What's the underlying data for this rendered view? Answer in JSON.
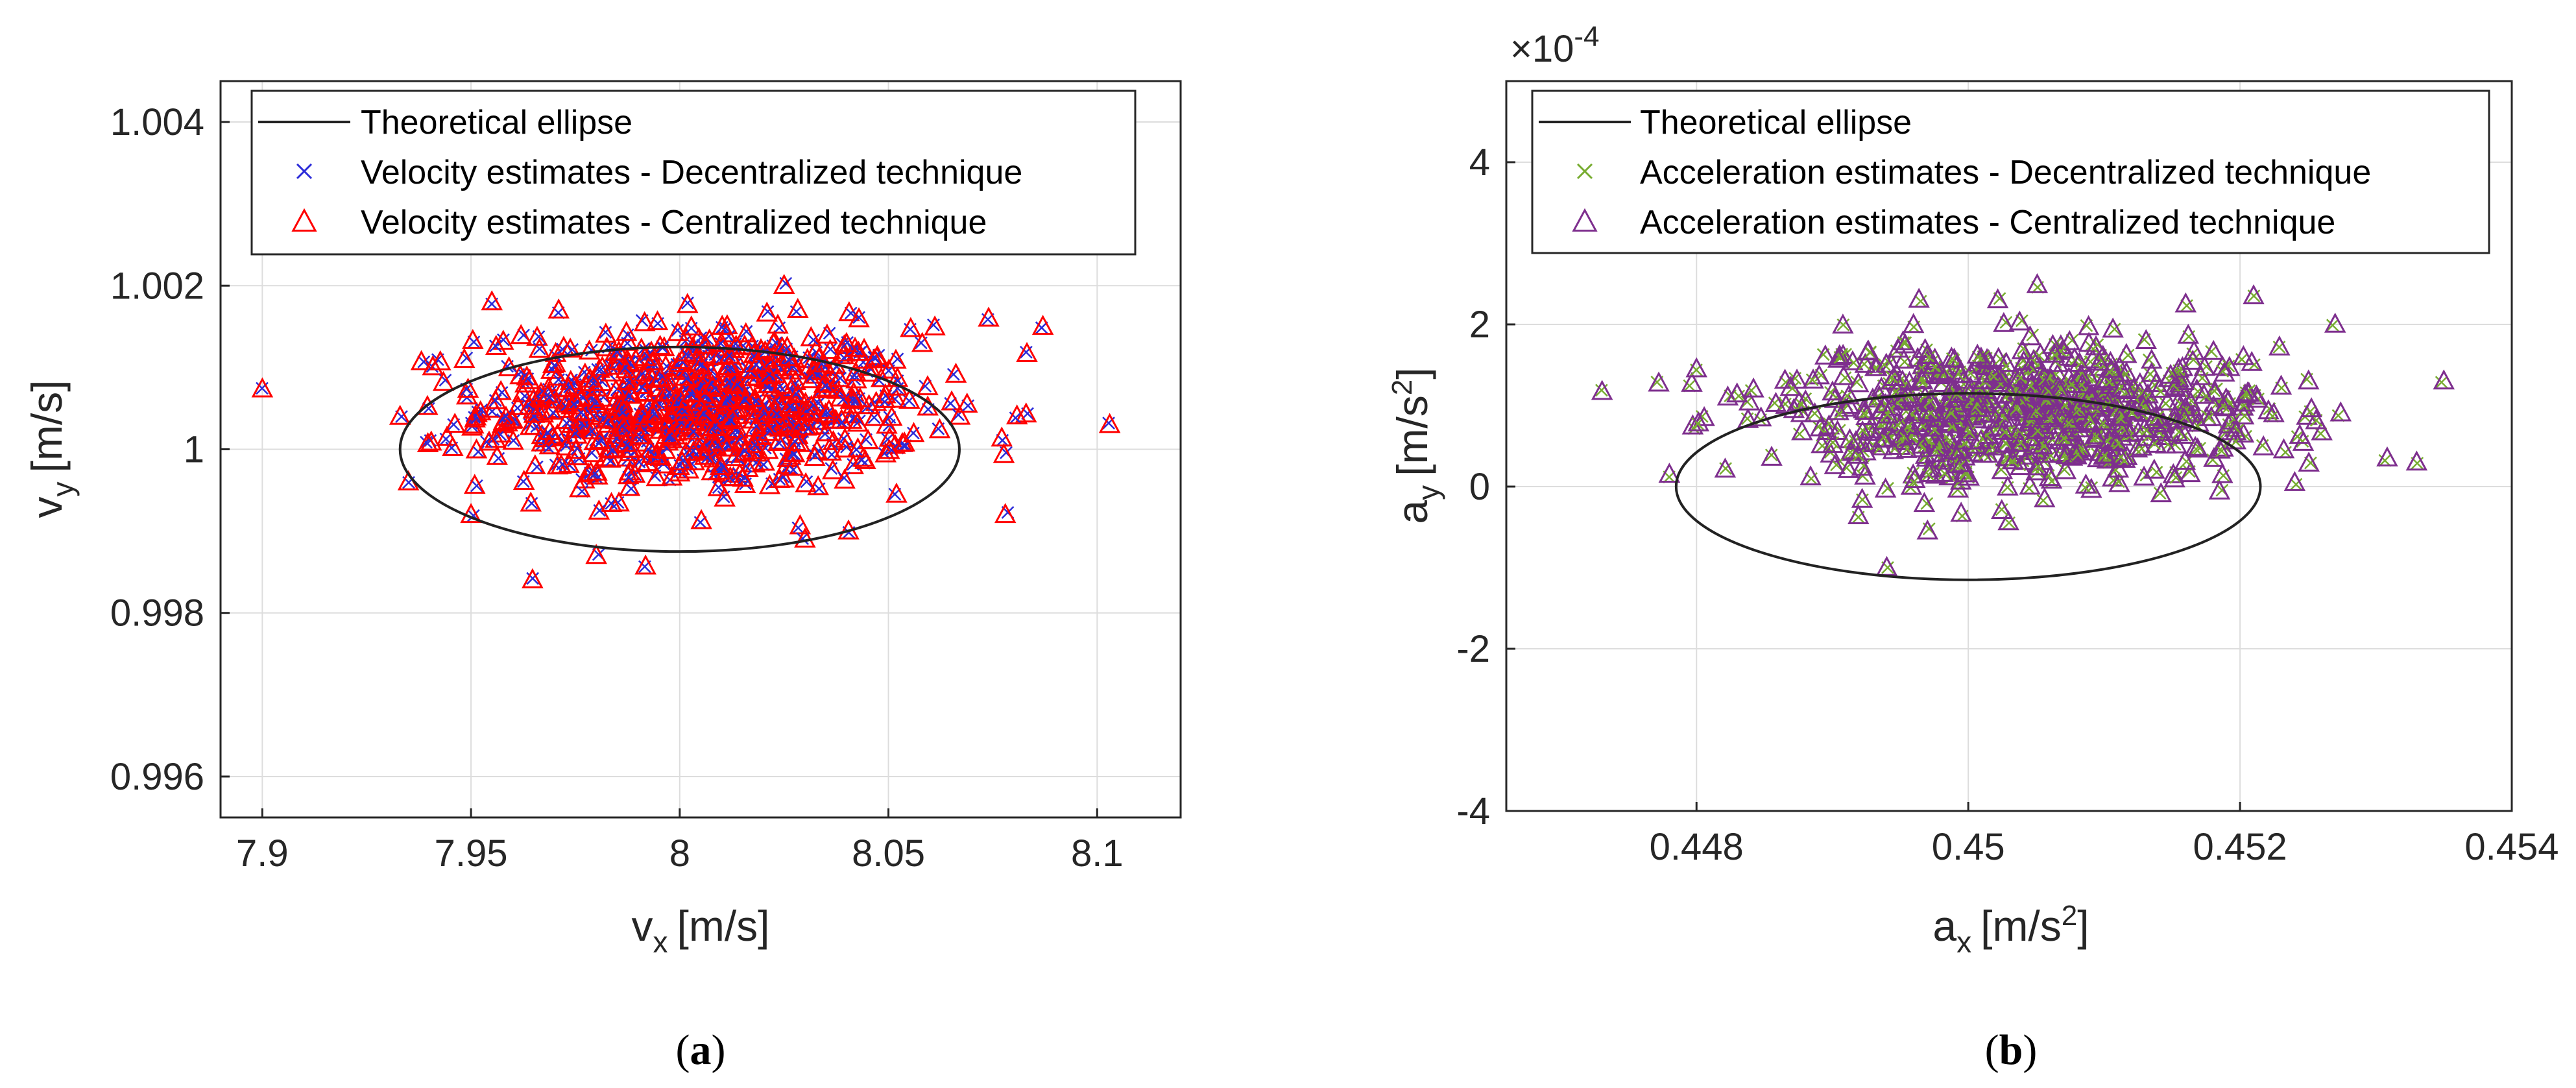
{
  "chart_data": [
    {
      "type": "scatter",
      "panel_label": "a",
      "xlabel": "v",
      "xlabel_sub": "x",
      "xlabel_unit": "[m/s]",
      "ylabel": "v",
      "ylabel_sub": "y",
      "ylabel_unit": "[m/s]",
      "xlim": [
        7.89,
        8.12
      ],
      "ylim": [
        0.9955,
        1.0045
      ],
      "xticks": [
        7.9,
        7.95,
        8,
        8.05,
        8.1
      ],
      "xtick_labels": [
        "7.9",
        "7.95",
        "8",
        "8.05",
        "8.1"
      ],
      "yticks": [
        0.996,
        0.998,
        1,
        1.002,
        1.004
      ],
      "ytick_labels": [
        "0.996",
        "0.998",
        "1",
        "1.002",
        "1.004"
      ],
      "grid": true,
      "legend_position": "top",
      "ellipse": {
        "center": [
          8.0,
          1.0
        ],
        "semi_axis_x": 0.067,
        "semi_axis_y": 0.00125
      },
      "series": [
        {
          "name": "Theoretical ellipse",
          "kind": "line",
          "color": "#000000"
        },
        {
          "name": "Velocity estimates - Decentralized technique",
          "kind": "x-marker",
          "color": "#2b2bd9",
          "center": [
            8.005,
            1.0005
          ],
          "spread": [
            0.026,
            0.0005
          ],
          "count": 700
        },
        {
          "name": "Velocity estimates - Centralized technique",
          "kind": "triangle-marker",
          "color": "#ff0000",
          "center": [
            8.005,
            1.0005
          ],
          "spread": [
            0.026,
            0.0005
          ],
          "count": 700
        }
      ],
      "outliers": [
        {
          "x": 7.935,
          "y": 0.9996
        },
        {
          "x": 7.955,
          "y": 1.0018
        },
        {
          "x": 7.971,
          "y": 1.0017
        },
        {
          "x": 7.98,
          "y": 0.9987
        },
        {
          "x": 8.025,
          "y": 1.002
        },
        {
          "x": 8.074,
          "y": 1.0016
        },
        {
          "x": 8.087,
          "y": 1.0015
        },
        {
          "x": 8.103,
          "y": 1.0003
        },
        {
          "x": 8.078,
          "y": 0.9992
        },
        {
          "x": 7.933,
          "y": 1.0004
        },
        {
          "x": 8.03,
          "y": 0.9989
        },
        {
          "x": 7.95,
          "y": 0.9992
        }
      ],
      "caption": "(a)"
    },
    {
      "type": "scatter",
      "panel_label": "b",
      "exponent_label": "×10",
      "exponent_power": "-4",
      "xlabel": "a",
      "xlabel_sub": "x",
      "xlabel_unit": "[m/s",
      "xlabel_unit_sup": "2",
      "xlabel_unit_end": "]",
      "ylabel": "a",
      "ylabel_sub": "y",
      "ylabel_unit": "[m/s",
      "ylabel_unit_sup": "2",
      "ylabel_unit_end": "]",
      "xlim": [
        0.4466,
        0.454
      ],
      "ylim": [
        -4,
        5
      ],
      "xticks": [
        0.448,
        0.45,
        0.452,
        0.454
      ],
      "xtick_labels": [
        "0.448",
        "0.45",
        "0.452",
        "0.454"
      ],
      "yticks": [
        -4,
        -2,
        0,
        2,
        4
      ],
      "ytick_labels": [
        "-4",
        "-2",
        "0",
        "2",
        "4"
      ],
      "grid": true,
      "legend_position": "top",
      "ellipse": {
        "center": [
          0.45,
          0.0
        ],
        "semi_axis_x": 0.00215,
        "semi_axis_y": 1.15
      },
      "series": [
        {
          "name": "Theoretical ellipse",
          "kind": "line",
          "color": "#000000"
        },
        {
          "name": "Acceleration estimates - Decentralized technique",
          "kind": "x-marker",
          "color": "#77ac30",
          "center": [
            0.45035,
            0.9
          ],
          "spread": [
            0.00095,
            0.45
          ],
          "count": 700
        },
        {
          "name": "Acceleration estimates - Centralized technique",
          "kind": "triangle-marker",
          "color": "#7e2f8e",
          "center": [
            0.45035,
            0.9
          ],
          "spread": [
            0.00095,
            0.45
          ],
          "count": 700
        }
      ],
      "outliers": [
        {
          "x": 0.4478,
          "y": 0.15
        },
        {
          "x": 0.4494,
          "y": -1.0
        },
        {
          "x": 0.4535,
          "y": 1.3
        },
        {
          "x": 0.4516,
          "y": 2.25
        },
        {
          "x": 0.4521,
          "y": 2.35
        },
        {
          "x": 0.4497,
          "y": -0.55
        },
        {
          "x": 0.4533,
          "y": 0.3
        },
        {
          "x": 0.448,
          "y": 1.45
        },
        {
          "x": 0.4527,
          "y": 2.0
        }
      ],
      "caption": "(b)"
    }
  ]
}
